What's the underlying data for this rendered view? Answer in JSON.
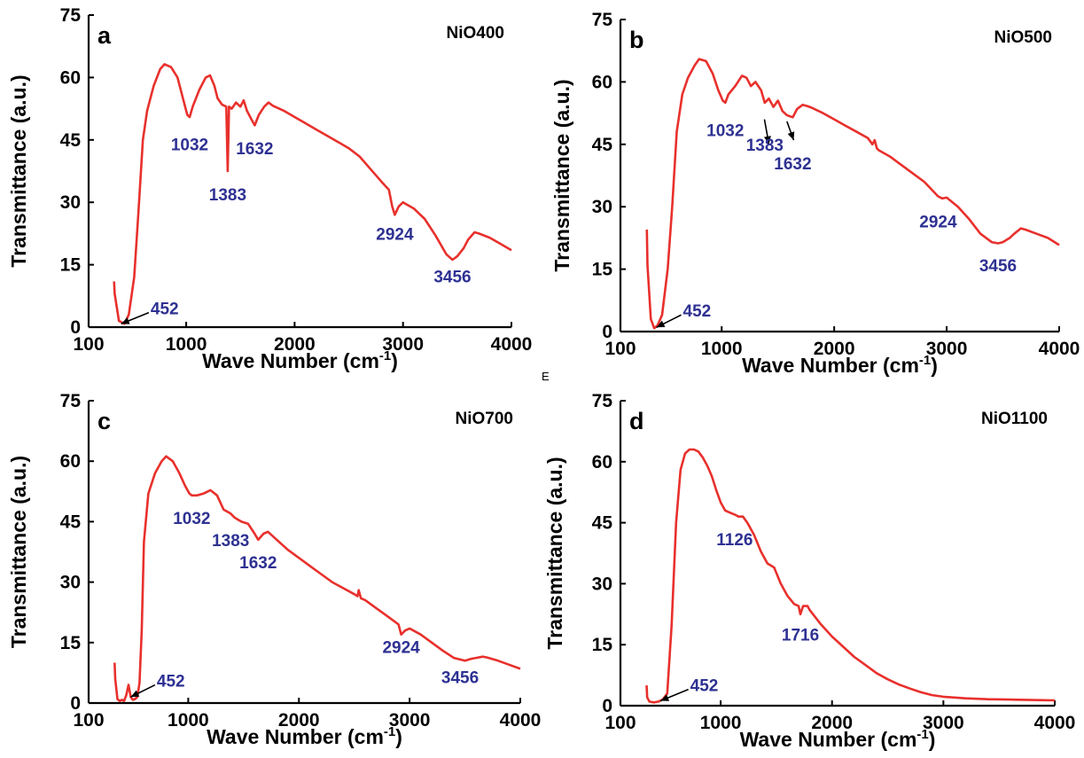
{
  "figure_letter": "E",
  "chart_data": [
    {
      "type": "line",
      "panel_label": "a",
      "sample": "NiO400",
      "xlabel": "Wave Number (cm",
      "xlabel_sup": "-1",
      "xlabel_tail": ")",
      "ylabel": "Transmittance (a.u.)",
      "xlim": [
        100,
        4000
      ],
      "ylim": [
        0,
        75
      ],
      "x_ticks": [
        "100",
        "1000",
        "2000",
        "3000",
        "4000"
      ],
      "x_tick_values": [
        100,
        1000,
        2000,
        3000,
        4000
      ],
      "y_ticks": [
        "0",
        "15",
        "30",
        "45",
        "60",
        "75"
      ],
      "y_tick_values": [
        0,
        15,
        30,
        45,
        60,
        75
      ],
      "series": [
        {
          "color": "#e8302c",
          "x": [
            335,
            340,
            380,
            430,
            470,
            520,
            560,
            600,
            640,
            700,
            760,
            800,
            860,
            920,
            970,
            1010,
            1032,
            1060,
            1120,
            1180,
            1220,
            1260,
            1290,
            1330,
            1370,
            1383,
            1395,
            1420,
            1460,
            1500,
            1530,
            1560,
            1600,
            1632,
            1670,
            1720,
            1760,
            1800,
            1900,
            2000,
            2100,
            2200,
            2300,
            2400,
            2500,
            2600,
            2700,
            2800,
            2870,
            2900,
            2924,
            2960,
            3000,
            3100,
            3200,
            3300,
            3400,
            3456,
            3500,
            3560,
            3600,
            3660,
            3700,
            3800,
            3900,
            4000
          ],
          "y": [
            11,
            8,
            1.5,
            0.8,
            3,
            12,
            28,
            45,
            52,
            58,
            62,
            63.2,
            62.5,
            60,
            55,
            51,
            50.5,
            53,
            57,
            60,
            60.5,
            58,
            55,
            53.5,
            53,
            37.5,
            53,
            52.5,
            54,
            53,
            54.5,
            52,
            50,
            48.5,
            51,
            53,
            54,
            53.2,
            52,
            50.5,
            49,
            47.5,
            46,
            44.5,
            43,
            41,
            38,
            35,
            33,
            29,
            27,
            29,
            30,
            28.5,
            26,
            22,
            17.5,
            16.2,
            17,
            19,
            21,
            22.8,
            22.5,
            21.5,
            20,
            18.5
          ]
        }
      ],
      "annotations": [
        {
          "text": "452",
          "x": 400,
          "y": 2.6,
          "arrow_from": [
            655,
            3.5
          ],
          "arrow_to": [
            400,
            0.8
          ]
        },
        {
          "text": "1032",
          "x": 1032,
          "y": 44
        },
        {
          "text": "1383",
          "x": 1383,
          "y": 32
        },
        {
          "text": "1632",
          "x": 1632,
          "y": 43
        },
        {
          "text": "2924",
          "x": 2924,
          "y": 22.5
        },
        {
          "text": "3456",
          "x": 3456,
          "y": 12.3
        }
      ]
    },
    {
      "type": "line",
      "panel_label": "b",
      "sample": "NiO500",
      "xlabel": "Wave Number (cm",
      "xlabel_sup": "-1",
      "xlabel_tail": ")",
      "ylabel": "Transmittance (a.u.)",
      "xlim": [
        100,
        4000
      ],
      "ylim": [
        0,
        75
      ],
      "x_ticks": [
        "100",
        "1000",
        "2000",
        "3000",
        "4000"
      ],
      "x_tick_values": [
        100,
        1000,
        2000,
        3000,
        4000
      ],
      "y_ticks": [
        "0",
        "15",
        "30",
        "45",
        "60",
        "75"
      ],
      "y_tick_values": [
        0,
        15,
        30,
        45,
        60,
        75
      ],
      "series": [
        {
          "color": "#e8302c",
          "x": [
            335,
            340,
            370,
            400,
            430,
            470,
            520,
            560,
            600,
            650,
            700,
            760,
            800,
            860,
            920,
            970,
            1010,
            1032,
            1060,
            1120,
            1180,
            1220,
            1260,
            1300,
            1350,
            1383,
            1420,
            1460,
            1500,
            1540,
            1580,
            1632,
            1670,
            1720,
            1760,
            1800,
            1900,
            2000,
            2100,
            2200,
            2300,
            2340,
            2360,
            2380,
            2400,
            2500,
            2600,
            2700,
            2800,
            2870,
            2924,
            2960,
            3000,
            3100,
            3200,
            3300,
            3400,
            3456,
            3500,
            3560,
            3600,
            3660,
            3700,
            3800,
            3900,
            4000
          ],
          "y": [
            24.5,
            16,
            3,
            0.8,
            1.5,
            4,
            15,
            30,
            48,
            57,
            61,
            64,
            65.5,
            65,
            62,
            58,
            55.5,
            55,
            57,
            59,
            61.5,
            61,
            59,
            60,
            58,
            55,
            56,
            54,
            55.5,
            53,
            52,
            51.5,
            53.5,
            54.5,
            54.2,
            53.8,
            52.5,
            51,
            49.5,
            48,
            46.5,
            45,
            46,
            44,
            43.5,
            42,
            40,
            38,
            36,
            34,
            32.5,
            32,
            32.2,
            30,
            27,
            23.5,
            21.5,
            21.2,
            21.5,
            22.5,
            23.5,
            24.8,
            24.5,
            23.5,
            22.5,
            20.8
          ]
        }
      ],
      "annotations": [
        {
          "text": "452",
          "x": 420,
          "y": 3.1,
          "arrow_from": [
            640,
            4
          ],
          "arrow_to": [
            420,
            1
          ]
        },
        {
          "text": "1032",
          "x": 1032,
          "y": 48.5
        },
        {
          "text": "1383",
          "x": 1383,
          "y": 45,
          "arrow_from": [
            1380,
            51
          ],
          "arrow_to": [
            1420,
            45
          ]
        },
        {
          "text": "1632",
          "x": 1632,
          "y": 40.5,
          "arrow_from": [
            1580,
            50.5
          ],
          "arrow_to": [
            1640,
            46
          ]
        },
        {
          "text": "2924",
          "x": 2924,
          "y": 26.5
        },
        {
          "text": "3456",
          "x": 3456,
          "y": 16
        }
      ]
    },
    {
      "type": "line",
      "panel_label": "c",
      "sample": "NiO700",
      "xlabel": "Wave Number (cm",
      "xlabel_sup": "-1",
      "xlabel_tail": ")",
      "ylabel": "Transmittance (a.u.)",
      "xlim": [
        100,
        4000
      ],
      "ylim": [
        0,
        75
      ],
      "x_ticks": [
        "100",
        "1000",
        "2000",
        "3000",
        "4000"
      ],
      "x_tick_values": [
        100,
        1000,
        2000,
        3000,
        4000
      ],
      "y_ticks": [
        "0",
        "15",
        "30",
        "45",
        "60",
        "75"
      ],
      "y_tick_values": [
        0,
        15,
        30,
        45,
        60,
        75
      ],
      "series": [
        {
          "color": "#e8302c",
          "x": [
            335,
            340,
            360,
            380,
            400,
            420,
            440,
            460,
            480,
            500,
            520,
            540,
            560,
            580,
            600,
            640,
            700,
            760,
            800,
            860,
            920,
            970,
            1010,
            1032,
            1080,
            1140,
            1200,
            1260,
            1320,
            1383,
            1420,
            1480,
            1540,
            1600,
            1632,
            1680,
            1720,
            1800,
            1900,
            2000,
            2100,
            2200,
            2300,
            2400,
            2500,
            2530,
            2540,
            2560,
            2600,
            2700,
            2800,
            2900,
            2924,
            2960,
            3000,
            3100,
            3200,
            3300,
            3400,
            3456,
            3500,
            3560,
            3600,
            3660,
            3700,
            3800,
            3900,
            4000
          ],
          "y": [
            10,
            6,
            1,
            0.5,
            0.8,
            0.5,
            2,
            4.5,
            1.5,
            0.8,
            1,
            1.5,
            5,
            18,
            40,
            52,
            57,
            60,
            61.2,
            60,
            57,
            54,
            52,
            51.5,
            51.5,
            52,
            52.8,
            51.5,
            48,
            47,
            46,
            45,
            44.5,
            42,
            40.5,
            42,
            42.5,
            40.5,
            38,
            36,
            34,
            32,
            30,
            28.5,
            27,
            26.5,
            28,
            26,
            25.5,
            23.5,
            21.5,
            19.5,
            17,
            18,
            18.5,
            17,
            15,
            13,
            11.2,
            10.8,
            10.5,
            11,
            11.2,
            11.5,
            11.3,
            10.5,
            9.5,
            8.5
          ]
        }
      ],
      "annotations": [
        {
          "text": "452",
          "x": 480,
          "y": 1.5,
          "arrow_from": [
            700,
            4.5
          ],
          "arrow_to": [
            480,
            1.5
          ]
        },
        {
          "text": "1032",
          "x": 1032,
          "y": 46
        },
        {
          "text": "1383",
          "x": 1383,
          "y": 40.5
        },
        {
          "text": "1632",
          "x": 1632,
          "y": 35
        },
        {
          "text": "2924",
          "x": 2924,
          "y": 14
        },
        {
          "text": "3456",
          "x": 3456,
          "y": 6.5
        }
      ]
    },
    {
      "type": "line",
      "panel_label": "d",
      "sample": "NiO1100",
      "xlabel": "Wave Number (cm",
      "xlabel_sup": "-1",
      "xlabel_tail": ")",
      "ylabel": "Transmittance (a.u.)",
      "xlim": [
        100,
        4000
      ],
      "ylim": [
        0,
        75
      ],
      "x_ticks": [
        "100",
        "1000",
        "2000",
        "3000",
        "4000"
      ],
      "x_tick_values": [
        100,
        1000,
        2000,
        3000,
        4000
      ],
      "y_ticks": [
        "0",
        "15",
        "30",
        "45",
        "60",
        "75"
      ],
      "y_tick_values": [
        0,
        15,
        30,
        45,
        60,
        75
      ],
      "series": [
        {
          "color": "#e8302c",
          "x": [
            335,
            340,
            360,
            400,
            440,
            480,
            520,
            560,
            600,
            640,
            680,
            720,
            760,
            800,
            840,
            880,
            920,
            960,
            1000,
            1040,
            1080,
            1126,
            1160,
            1200,
            1240,
            1300,
            1360,
            1420,
            1480,
            1540,
            1600,
            1660,
            1700,
            1716,
            1740,
            1780,
            1800,
            1900,
            2000,
            2100,
            2200,
            2300,
            2400,
            2500,
            2600,
            2700,
            2800,
            2900,
            3000,
            3200,
            3400,
            3600,
            3800,
            4000
          ],
          "y": [
            5,
            2,
            1,
            0.8,
            1,
            1.5,
            3,
            20,
            45,
            58,
            62,
            63,
            63,
            62.5,
            61,
            59,
            56.5,
            53,
            50,
            48,
            47.5,
            47,
            46.5,
            46.5,
            45,
            42,
            38,
            35,
            34,
            30,
            27,
            25,
            24.5,
            22.5,
            24.5,
            24.5,
            23.5,
            20,
            17,
            14.5,
            12,
            10,
            8,
            6.5,
            5.2,
            4.2,
            3.3,
            2.6,
            2.2,
            1.8,
            1.6,
            1.5,
            1.4,
            1.3
          ]
        }
      ],
      "annotations": [
        {
          "text": "452",
          "x": 460,
          "y": 1.5,
          "arrow_from": [
            710,
            4
          ],
          "arrow_to": [
            460,
            1.2
          ]
        },
        {
          "text": "1126",
          "x": 1126,
          "y": 41
        },
        {
          "text": "1716",
          "x": 1716,
          "y": 17.5
        }
      ]
    }
  ]
}
